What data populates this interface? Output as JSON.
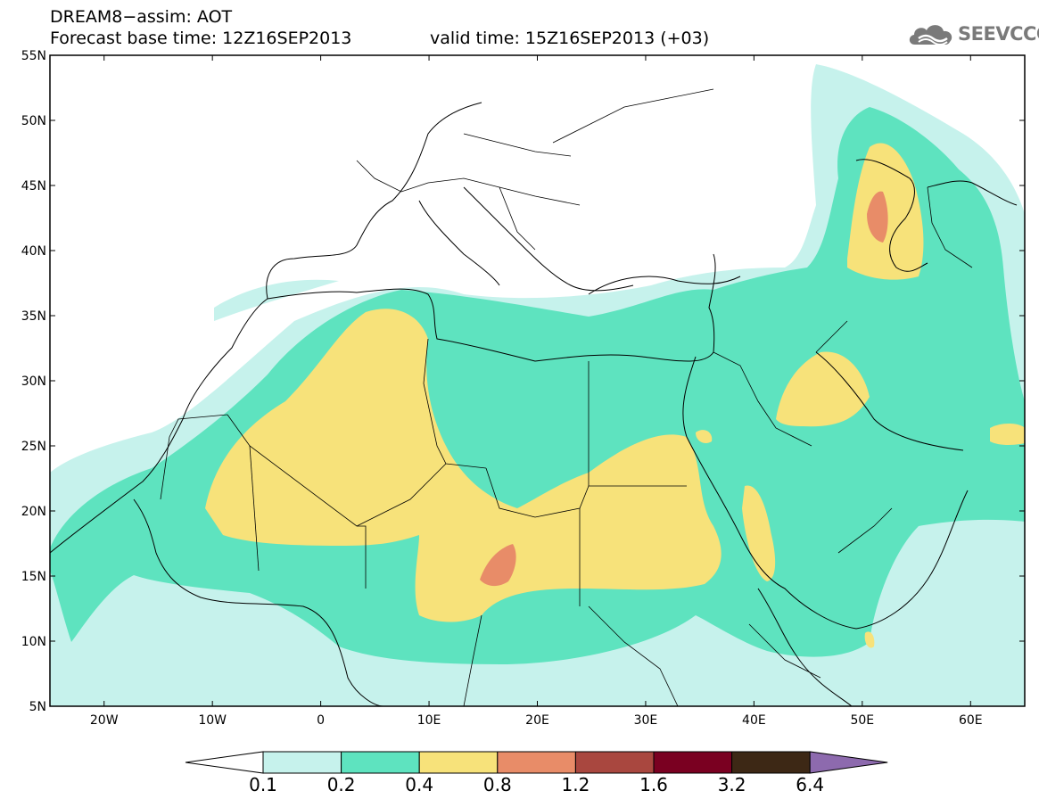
{
  "header": {
    "title": "DREAM8−assim: AOT",
    "base_time": "Forecast base time: 12Z16SEP2013",
    "valid_time": "valid time: 15Z16SEP2013 (+03)"
  },
  "logo": {
    "text": "SEEVCCC",
    "icon": "cloud-logo-icon"
  },
  "map": {
    "lat_labels": [
      "55N",
      "50N",
      "45N",
      "40N",
      "35N",
      "30N",
      "25N",
      "20N",
      "15N",
      "10N",
      "5N"
    ],
    "lon_labels": [
      "20W",
      "10W",
      "0",
      "10E",
      "20E",
      "30E",
      "40E",
      "50E",
      "60E"
    ],
    "extent": {
      "lon": [
        -25,
        65
      ],
      "lat": [
        5,
        55
      ]
    },
    "colors": {
      "bin_01_02": "#c6f2ec",
      "bin_02_04": "#5ee3bf",
      "bin_04_08": "#f7e27a",
      "bin_08_12": "#e88c68",
      "bin_12_16": "#a9473f",
      "bin_16_32": "#7a0021",
      "bin_32_64": "#3d2815",
      "bin_over_64": "#8d6aae"
    }
  },
  "colorbar": {
    "labels": [
      "0.1",
      "0.2",
      "0.4",
      "0.8",
      "1.2",
      "1.6",
      "3.2",
      "6.4"
    ],
    "colors": [
      "#c6f2ec",
      "#5ee3bf",
      "#f7e27a",
      "#e88c68",
      "#a9473f",
      "#7a0021",
      "#3d2815"
    ],
    "under_color": "#ffffff",
    "over_color": "#8d6aae"
  }
}
